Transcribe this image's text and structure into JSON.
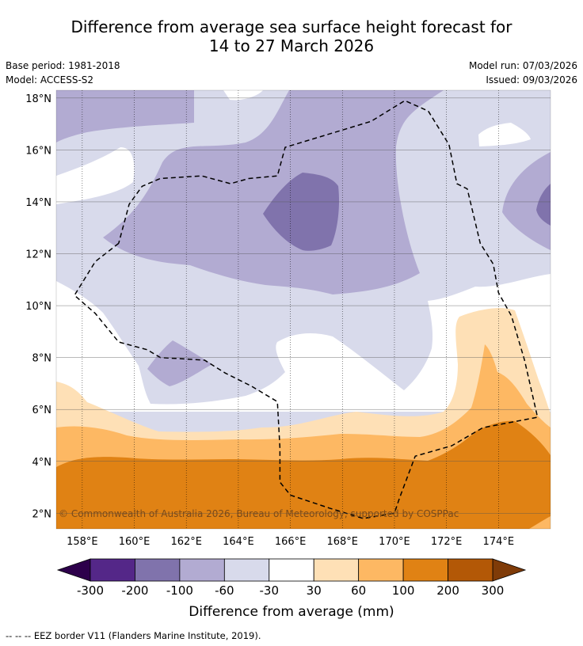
{
  "header": {
    "title_line1": "Difference from average sea surface height forecast for",
    "title_line2": "14 to 27 March 2026",
    "base_period": "Base period: 1981-2018",
    "model": "Model: ACCESS-S2",
    "model_run": "Model run: 07/03/2026",
    "issued": "Issued: 09/03/2026"
  },
  "copyright": "© Commonwealth of Australia 2026, Bureau of Meteorology, supported by COSPPac",
  "footnote": "--  --  -- EEZ border V11 (Flanders Marine Institute, 2019).",
  "colors": {
    "m300": "#2d004b",
    "m200": "#542788",
    "m100": "#8073ac",
    "m60": "#b2abd2",
    "m30": "#d8daeb",
    "zero": "#ffffff",
    "p30": "#fee0b6",
    "p60": "#fdb863",
    "p100": "#e08214",
    "p200": "#b35806",
    "p300": "#7f3b08"
  },
  "chart_data": {
    "type": "heatmap",
    "title": "Difference from average sea surface height forecast for 14 to 27 March 2026",
    "x_ticks": [
      "158°E",
      "160°E",
      "162°E",
      "164°E",
      "166°E",
      "168°E",
      "170°E",
      "172°E",
      "174°E"
    ],
    "x_tick_values": [
      158,
      160,
      162,
      164,
      166,
      168,
      170,
      172,
      174
    ],
    "y_ticks": [
      "18°N",
      "16°N",
      "14°N",
      "12°N",
      "10°N",
      "8°N",
      "6°N",
      "4°N",
      "2°N"
    ],
    "y_tick_values": [
      18,
      16,
      14,
      12,
      10,
      8,
      6,
      4,
      2
    ],
    "xlim": [
      157,
      176
    ],
    "ylim": [
      1.4,
      18.3
    ],
    "colorbar": {
      "label": "Difference from average (mm)",
      "tick_labels": [
        "-300",
        "-200",
        "-100",
        "-60",
        "-30",
        "30",
        "60",
        "100",
        "200",
        "300"
      ],
      "bins": [
        {
          "range": "-300 to -200",
          "color": "#542788"
        },
        {
          "range": "-200 to -100",
          "color": "#8073ac"
        },
        {
          "range": "-100 to -60",
          "color": "#b2abd2"
        },
        {
          "range": "-60 to -30",
          "color": "#d8daeb"
        },
        {
          "range": "-30 to 30",
          "color": "#ffffff"
        },
        {
          "range": "30 to 60",
          "color": "#fee0b6"
        },
        {
          "range": "60 to 100",
          "color": "#fdb863"
        },
        {
          "range": "100 to 200",
          "color": "#e08214"
        },
        {
          "range": "200 to 300",
          "color": "#b35806"
        }
      ],
      "extend_low_color": "#2d004b",
      "extend_high_color": "#7f3b08"
    },
    "regions": [
      {
        "level": "-60 to -30",
        "note": "background across northern half"
      },
      {
        "level": "-100 to -60",
        "note": "central band from west to east"
      },
      {
        "level": "-200 to -100",
        "note": "core near 166-168°E, 12-15°N"
      },
      {
        "level": "-30 to 30",
        "note": "band around 6-9°N"
      },
      {
        "level": "30 to 60",
        "note": "band near 5-7°N, extending north in east"
      },
      {
        "level": "60 to 100",
        "note": "band near 4-5.5°N"
      },
      {
        "level": "100 to 200",
        "note": "south of ~4°N"
      }
    ],
    "eez_border_path": [
      [
        159.4,
        12.4
      ],
      [
        158.5,
        11.7
      ],
      [
        157.7,
        10.4
      ],
      [
        158.5,
        9.7
      ],
      [
        159.4,
        8.6
      ],
      [
        160.5,
        8.3
      ],
      [
        161.0,
        8.0
      ],
      [
        162.7,
        7.9
      ],
      [
        163.5,
        7.4
      ],
      [
        164.5,
        6.9
      ],
      [
        165.5,
        6.3
      ],
      [
        165.6,
        4.5
      ],
      [
        165.6,
        3.2
      ],
      [
        166.0,
        2.7
      ],
      [
        167.5,
        2.2
      ],
      [
        168.8,
        1.8
      ],
      [
        170.0,
        2.0
      ],
      [
        170.2,
        2.6
      ],
      [
        170.8,
        4.2
      ],
      [
        172.2,
        4.6
      ],
      [
        173.4,
        5.3
      ],
      [
        175.5,
        5.7
      ],
      [
        175.0,
        7.9
      ],
      [
        174.5,
        9.6
      ],
      [
        174.0,
        10.5
      ],
      [
        173.8,
        11.6
      ],
      [
        173.3,
        12.4
      ],
      [
        172.8,
        14.5
      ],
      [
        172.4,
        14.7
      ],
      [
        172.1,
        16.2
      ],
      [
        171.3,
        17.5
      ],
      [
        170.4,
        17.9
      ],
      [
        169.1,
        17.1
      ],
      [
        165.8,
        16.1
      ],
      [
        165.5,
        15.0
      ],
      [
        164.4,
        14.9
      ],
      [
        163.7,
        14.7
      ],
      [
        162.6,
        15.0
      ],
      [
        161.0,
        14.9
      ],
      [
        160.3,
        14.6
      ],
      [
        159.8,
        13.9
      ],
      [
        159.4,
        12.4
      ]
    ]
  }
}
